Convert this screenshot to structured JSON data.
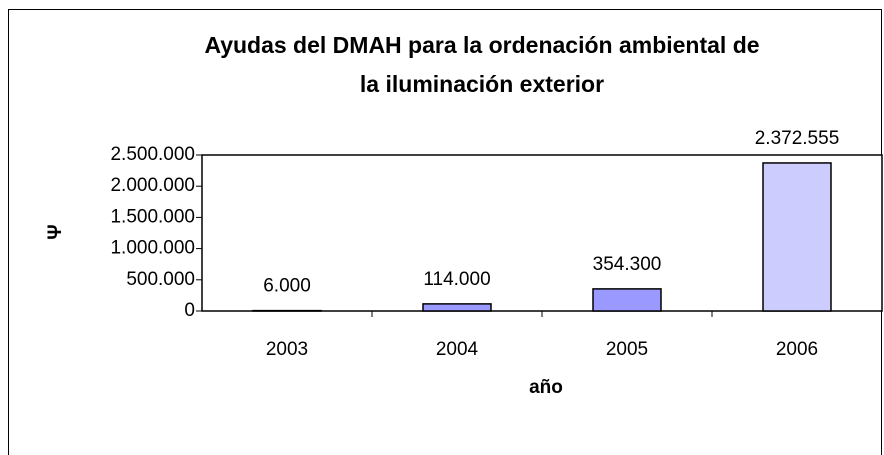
{
  "chart_data": {
    "type": "bar",
    "title": "Ayudas del DMAH para la ordenación ambiental de",
    "subtitle": "la iluminación exterior",
    "x_label": "año",
    "y_label": "Ψ",
    "categories": [
      "2003",
      "2004",
      "2005",
      "2006"
    ],
    "values": [
      6000,
      114000,
      354300,
      2372555
    ],
    "value_labels": [
      "6.000",
      "114.000",
      "354.300",
      "2.372.555"
    ],
    "colors": [
      "#9999ff",
      "#9999ff",
      "#9999ff",
      "#ccccff"
    ],
    "ylim": [
      0,
      2500000
    ],
    "yticks": [
      0,
      {
        "value": 500000,
        "label": "500.000"
      },
      {
        "value": 1000000,
        "label": "1.000.000"
      },
      {
        "value": 1500000,
        "label": "1.500.000"
      },
      {
        "value": 2000000,
        "label": "2.000.000"
      },
      {
        "value": 2500000,
        "label": "2.500.000"
      }
    ]
  }
}
